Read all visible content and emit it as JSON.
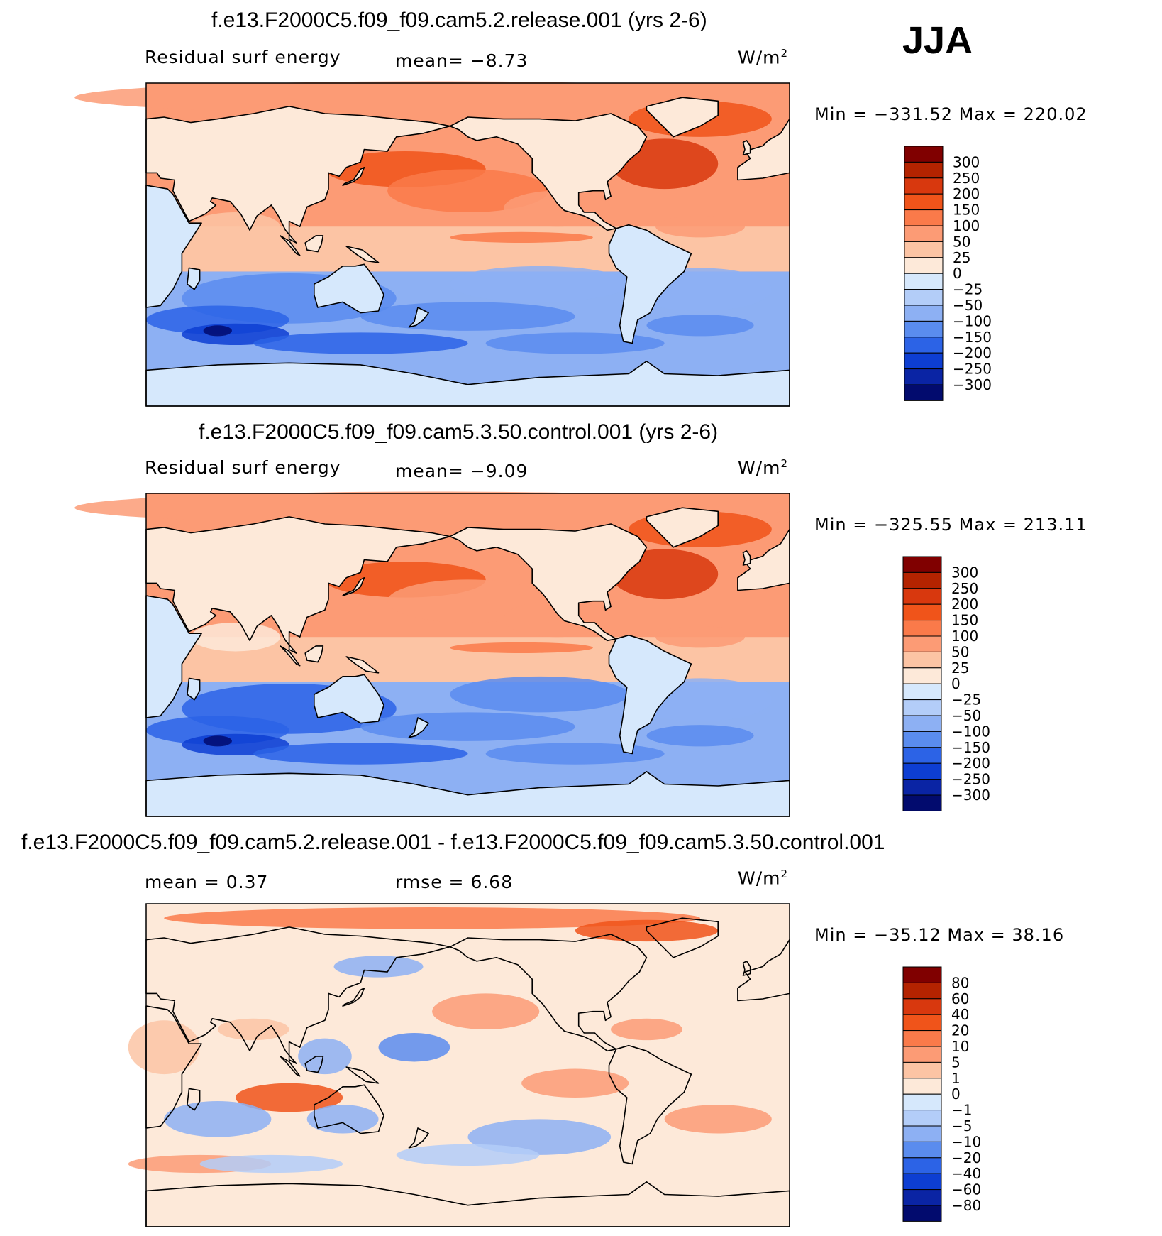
{
  "season": "JJA",
  "panels": [
    {
      "title": "f.e13.F2000C5.f09_f09.cam5.2.release.001 (yrs 2-6)",
      "left_label": "Residual surf energy",
      "stat1": "mean=   −8.73",
      "units": "W/m",
      "units_sup": "2",
      "minmax": "Min  =  −331.52  Max  =  220.02"
    },
    {
      "title": "f.e13.F2000C5.f09_f09.cam5.3.50.control.001 (yrs 2-6)",
      "left_label": "Residual surf energy",
      "stat1": "mean=   −9.09",
      "units": "W/m",
      "units_sup": "2",
      "minmax": "Min  =  −325.55  Max  =  213.11"
    },
    {
      "title": "f.e13.F2000C5.f09_f09.cam5.2.release.001 - f.e13.F2000C5.f09_f09.cam5.3.50.control.001",
      "left_label": "mean  =     0.37",
      "stat1": "rmse  =     6.68",
      "units": "W/m",
      "units_sup": "2",
      "minmax": "Min  =  −35.12  Max  =   38.16"
    }
  ],
  "chart_data": [
    {
      "type": "heatmap",
      "title": "f.e13.F2000C5.f09_f09.cam5.2.release.001 (yrs 2-6)",
      "variable": "Residual surf energy",
      "units": "W/m2",
      "mean": -8.73,
      "min": -331.52,
      "max": 220.02,
      "colorbar": {
        "levels": [
          "300",
          "250",
          "200",
          "150",
          "100",
          "50",
          "25",
          "0",
          "−25",
          "−50",
          "−100",
          "−150",
          "−200",
          "−250",
          "−300"
        ],
        "colors": [
          "#800000",
          "#b42300",
          "#d8380e",
          "#f0541a",
          "#fa7a4a",
          "#fc9b75",
          "#fcc4a4",
          "#fde9d9",
          "#d6e8fc",
          "#b3cdf8",
          "#8db0f3",
          "#5a8cee",
          "#2c63e6",
          "#0d3ed2",
          "#0a24a4",
          "#020b6e"
        ]
      }
    },
    {
      "type": "heatmap",
      "title": "f.e13.F2000C5.f09_f09.cam5.3.50.control.001 (yrs 2-6)",
      "variable": "Residual surf energy",
      "units": "W/m2",
      "mean": -9.09,
      "min": -325.55,
      "max": 213.11,
      "colorbar": {
        "levels": [
          "300",
          "250",
          "200",
          "150",
          "100",
          "50",
          "25",
          "0",
          "−25",
          "−50",
          "−100",
          "−150",
          "−200",
          "−250",
          "−300"
        ],
        "colors": [
          "#800000",
          "#b42300",
          "#d8380e",
          "#f0541a",
          "#fa7a4a",
          "#fc9b75",
          "#fcc4a4",
          "#fde9d9",
          "#d6e8fc",
          "#b3cdf8",
          "#8db0f3",
          "#5a8cee",
          "#2c63e6",
          "#0d3ed2",
          "#0a24a4",
          "#020b6e"
        ]
      }
    },
    {
      "type": "heatmap",
      "title": "f.e13.F2000C5.f09_f09.cam5.2.release.001 - f.e13.F2000C5.f09_f09.cam5.3.50.control.001",
      "units": "W/m2",
      "mean": 0.37,
      "rmse": 6.68,
      "min": -35.12,
      "max": 38.16,
      "colorbar": {
        "levels": [
          "80",
          "60",
          "40",
          "20",
          "10",
          "5",
          "1",
          "0",
          "−1",
          "−5",
          "−10",
          "−20",
          "−40",
          "−60",
          "−80"
        ],
        "colors": [
          "#800000",
          "#b42300",
          "#d8380e",
          "#f0541a",
          "#fa7a4a",
          "#fc9b75",
          "#fcc4a4",
          "#fde9d9",
          "#d6e8fc",
          "#b3cdf8",
          "#8db0f3",
          "#5a8cee",
          "#2c63e6",
          "#0d3ed2",
          "#0a24a4",
          "#020b6e"
        ]
      }
    }
  ]
}
